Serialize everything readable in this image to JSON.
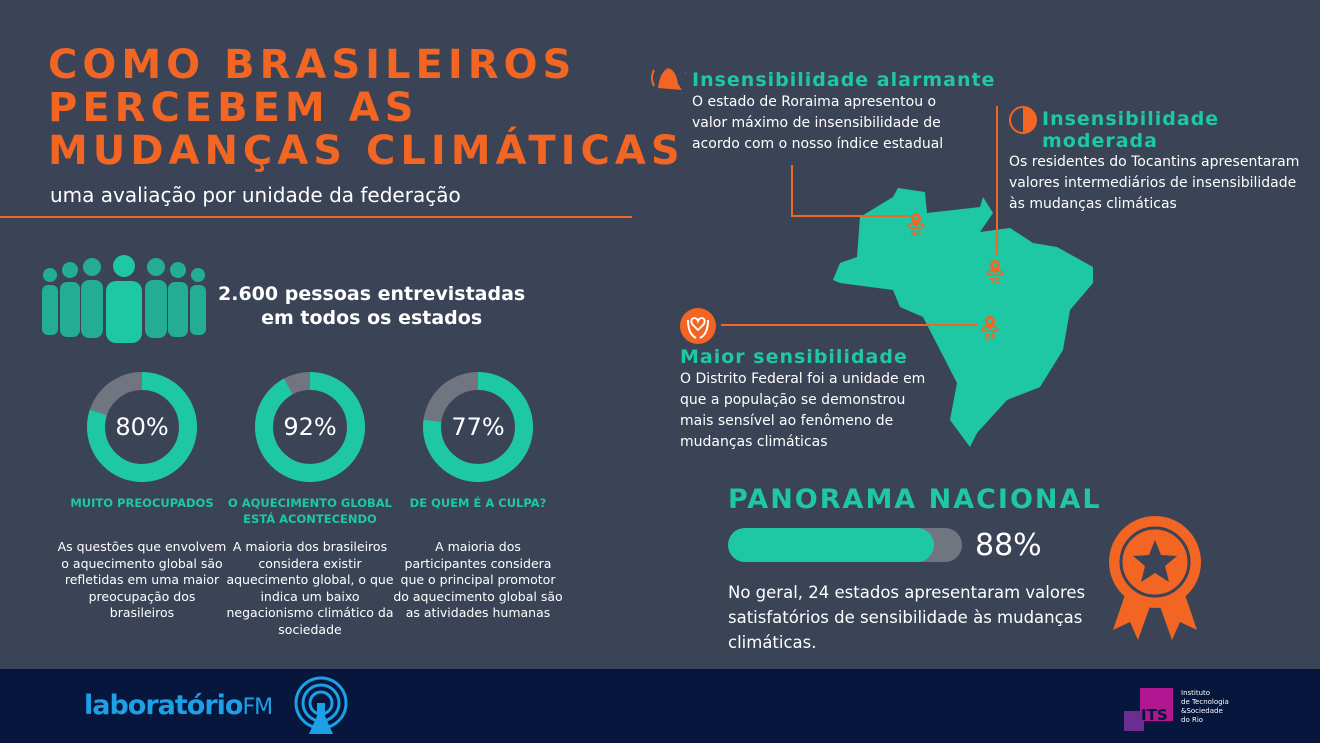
{
  "header": {
    "title_lines": [
      "COMO BRASILEIROS",
      "PERCEBEM AS",
      "MUDANÇAS CLIMÁTICAS"
    ],
    "subtitle": "uma avaliação por unidade da federação"
  },
  "survey": {
    "line1": "2.600 pessoas entrevistadas",
    "line2": "em todos os estados"
  },
  "stats": [
    {
      "percent": 80,
      "value_label": "80%",
      "label": "MUITO PREOCUPADOS",
      "description": "As questões que envolvem o aquecimento global são refletidas em uma maior preocupação dos brasileiros"
    },
    {
      "percent": 92,
      "value_label": "92%",
      "label": "O AQUECIMENTO GLOBAL ESTÁ ACONTECENDO",
      "description": "A maioria dos brasileiros considera existir aquecimento global, o que indica um baixo negacionismo climático da sociedade"
    },
    {
      "percent": 77,
      "value_label": "77%",
      "label": "DE QUEM É A CULPA?",
      "description": "A maioria dos participantes considera que o principal promotor do aquecimento global são as atividades humanas"
    }
  ],
  "map": {
    "alarmante": {
      "title": "Insensibilidade alarmante",
      "text": "O estado de Roraima apresentou o valor máximo de insensibilidade de acordo com o nosso índice estadual",
      "icon": "bell-icon"
    },
    "moderada": {
      "title_line1": "Insensibilidade",
      "title_line2": "moderada",
      "text": "Os residentes do Tocantins apresentaram valores intermediários de insensibilidade às mudanças climáticas",
      "icon": "half-circle-icon"
    },
    "maior": {
      "title": "Maior sensibilidade",
      "text": "O Distrito Federal foi a unidade em que a população se demonstrou mais sensível ao fenômeno de mudanças climáticas",
      "icon": "heart-hands-icon"
    },
    "pins": [
      "RR",
      "TO",
      "DF"
    ]
  },
  "panorama": {
    "title": "PANORAMA NACIONAL",
    "percent": 88,
    "value_label": "88%",
    "text": "No geral, 24 estados apresentaram valores satisfatórios de sensibilidade às mudanças climáticas."
  },
  "footer": {
    "logo_main": "laboratório",
    "logo_fm": "FM",
    "its_abbr": "ITS",
    "its_lines": [
      "Instituto",
      "de Tecnologia",
      "&Sociedade",
      "do Rio"
    ]
  },
  "colors": {
    "background": "#3b4357",
    "orange": "#f26522",
    "teal": "#1ec8a4",
    "gray": "#707580",
    "footer": "#06163d",
    "its_magenta": "#b0168f",
    "its_purple": "#6b2d8f",
    "lab_blue": "#1ea0e6"
  }
}
